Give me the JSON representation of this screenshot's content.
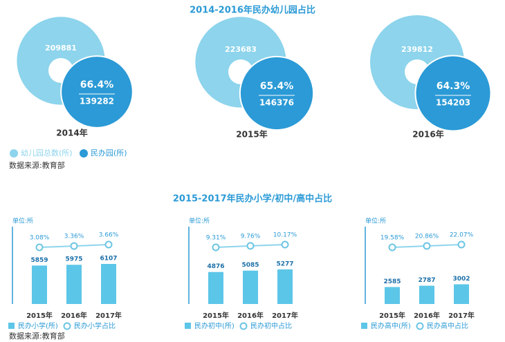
{
  "chart_data": [
    {
      "type": "nested-circle",
      "title": "2014-2016年民办幼儿园占比",
      "categories": [
        "2014年",
        "2015年",
        "2016年"
      ],
      "series": [
        {
          "name": "幼儿园总数(所)",
          "color": "#8dd4ec",
          "values": [
            209881,
            223683,
            239812
          ]
        },
        {
          "name": "民办园(所)",
          "color": "#2b9ad6",
          "values": [
            139282,
            146376,
            154203
          ]
        }
      ],
      "share": {
        "values": [
          66.4,
          65.4,
          64.3
        ],
        "value_labels": [
          "66.4%",
          "65.4%",
          "64.3%"
        ]
      },
      "source": "数据来源:教育部"
    },
    {
      "type": "bar-line",
      "title": "2015-2017年民办小学/初中/高中占比",
      "unit": "单位:所",
      "categories": [
        "2015年",
        "2016年",
        "2017年"
      ],
      "series": [
        {
          "name": "民办小学(所)",
          "color": "#5cc6e8",
          "values": [
            5859,
            5975,
            6107
          ]
        },
        {
          "name": "民办小学占比",
          "color": "#8dd4ec",
          "values": [
            3.08,
            3.36,
            3.66
          ],
          "value_labels": [
            "3.08%",
            "3.36%",
            "3.66%"
          ]
        }
      ],
      "source": "数据来源:教育部"
    },
    {
      "type": "bar-line",
      "unit": "单位:所",
      "categories": [
        "2015年",
        "2016年",
        "2017年"
      ],
      "series": [
        {
          "name": "民办初中(所)",
          "color": "#5cc6e8",
          "values": [
            4876,
            5085,
            5277
          ]
        },
        {
          "name": "民办初中占比",
          "color": "#8dd4ec",
          "values": [
            9.31,
            9.76,
            10.17
          ],
          "value_labels": [
            "9.31%",
            "9.76%",
            "10.17%"
          ]
        }
      ]
    },
    {
      "type": "bar-line",
      "unit": "单位:所",
      "categories": [
        "2015年",
        "2016年",
        "2017年"
      ],
      "series": [
        {
          "name": "民办高中(所)",
          "color": "#5cc6e8",
          "values": [
            2585,
            2787,
            3002
          ]
        },
        {
          "name": "民办高中占比",
          "color": "#8dd4ec",
          "values": [
            19.58,
            20.86,
            22.07
          ],
          "value_labels": [
            "19.58%",
            "20.86%",
            "22.07%"
          ]
        }
      ]
    }
  ]
}
